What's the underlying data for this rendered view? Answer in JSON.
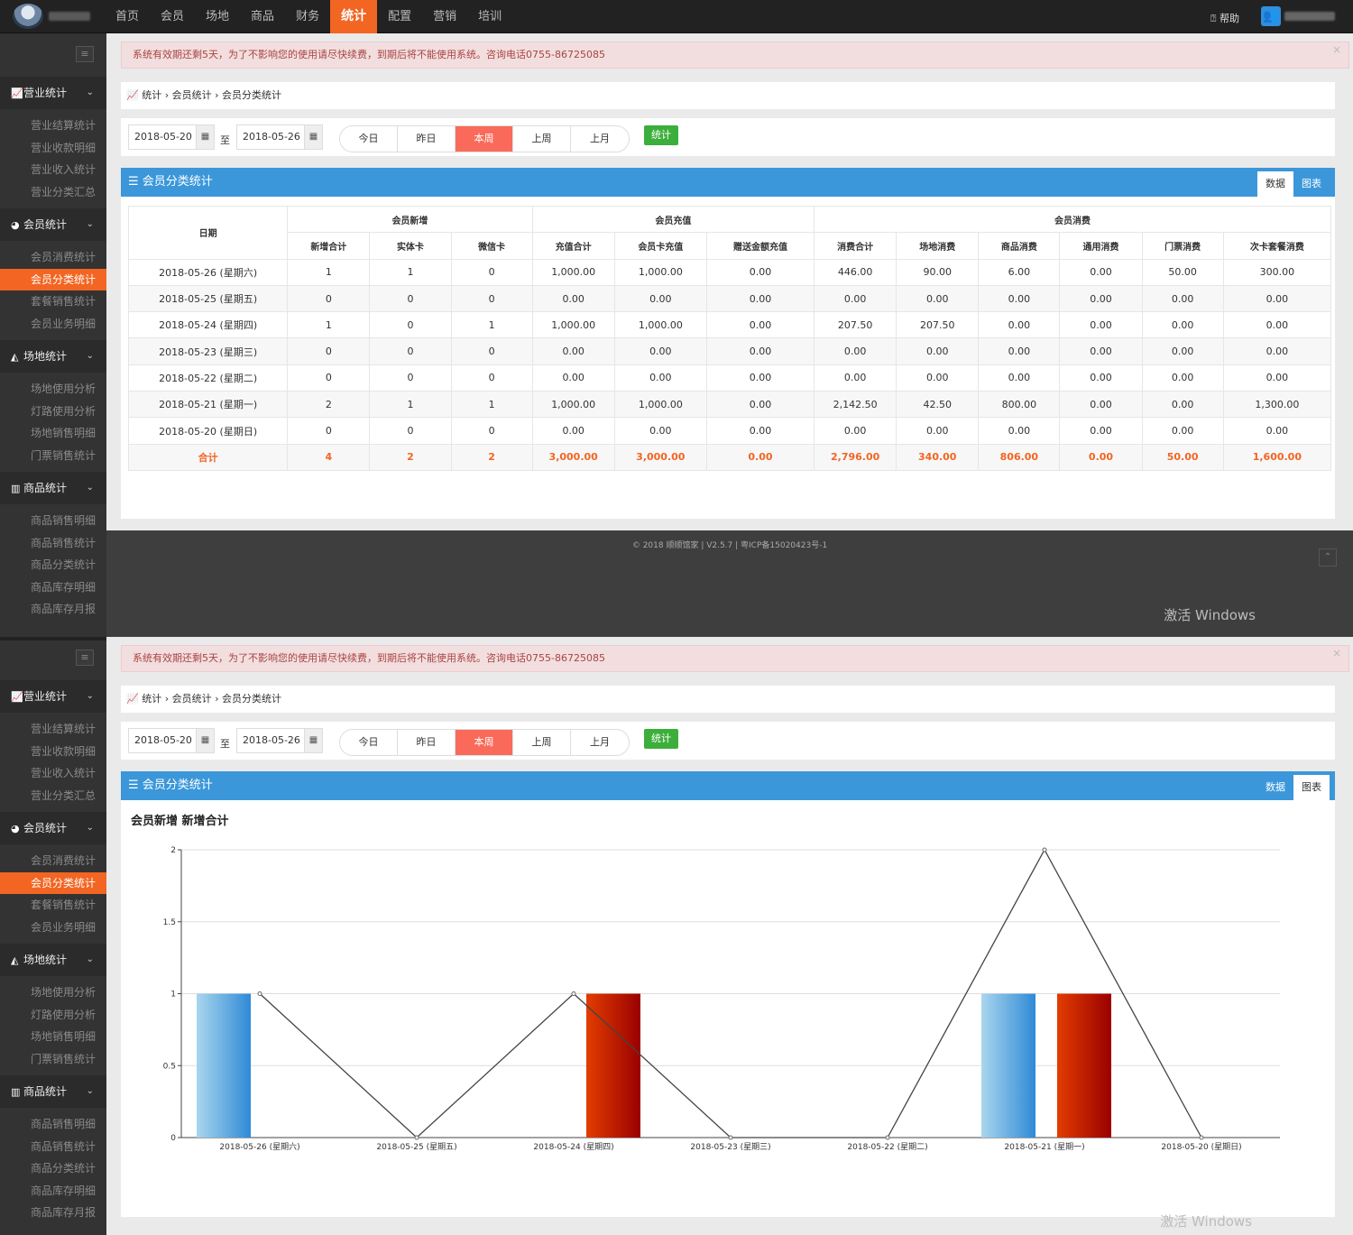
{
  "topnav": {
    "items": [
      "首页",
      "会员",
      "场地",
      "商品",
      "财务",
      "统计",
      "配置",
      "营销",
      "培训"
    ],
    "active": 5,
    "help": "帮助"
  },
  "alert": "系统有效期还剩5天，为了不影响您的使用请尽快续费，到期后将不能使用系统。咨询电话0755-86725085",
  "alert_close": "×",
  "breadcrumb": "统计 › 会员统计 › 会员分类统计",
  "filter": {
    "start": "2018-05-20",
    "end": "2018-05-26",
    "to": "至",
    "ranges": [
      "今日",
      "昨日",
      "本周",
      "上周",
      "上月"
    ],
    "active_range": 2,
    "submit": "统计"
  },
  "panel": {
    "title": "☰ 会员分类统计",
    "tab_data": "数据",
    "tab_chart": "图表"
  },
  "sidebar": [
    {
      "title": "营业统计",
      "icon": "line-chart-icon",
      "items": [
        "营业结算统计",
        "营业收款明细",
        "营业收入统计",
        "营业分类汇总"
      ]
    },
    {
      "title": "会员统计",
      "icon": "pie-chart-icon",
      "items": [
        "会员消费统计",
        "会员分类统计",
        "套餐销售统计",
        "会员业务明细"
      ]
    },
    {
      "title": "场地统计",
      "icon": "area-chart-icon",
      "items": [
        "场地使用分析",
        "灯路使用分析",
        "场地销售明细",
        "门票销售统计"
      ]
    },
    {
      "title": "商品统计",
      "icon": "bar-chart-icon",
      "items": [
        "商品销售明细",
        "商品销售统计",
        "商品分类统计",
        "商品库存明细",
        "商品库存月报"
      ]
    }
  ],
  "sidebar_active": "会员分类统计",
  "table": {
    "group_headers": [
      {
        "label": "会员新增",
        "span": 3
      },
      {
        "label": "会员充值",
        "span": 3
      },
      {
        "label": "会员消费",
        "span": 6
      }
    ],
    "date_header": "日期",
    "columns": [
      "新增合计",
      "实体卡",
      "微信卡",
      "充值合计",
      "会员卡充值",
      "赠送金额充值",
      "消费合计",
      "场地消费",
      "商品消费",
      "通用消费",
      "门票消费",
      "次卡套餐消费"
    ],
    "rows": [
      [
        "2018-05-26 (星期六)",
        "1",
        "1",
        "0",
        "1,000.00",
        "1,000.00",
        "0.00",
        "446.00",
        "90.00",
        "6.00",
        "0.00",
        "50.00",
        "300.00"
      ],
      [
        "2018-05-25 (星期五)",
        "0",
        "0",
        "0",
        "0.00",
        "0.00",
        "0.00",
        "0.00",
        "0.00",
        "0.00",
        "0.00",
        "0.00",
        "0.00"
      ],
      [
        "2018-05-24 (星期四)",
        "1",
        "0",
        "1",
        "1,000.00",
        "1,000.00",
        "0.00",
        "207.50",
        "207.50",
        "0.00",
        "0.00",
        "0.00",
        "0.00"
      ],
      [
        "2018-05-23 (星期三)",
        "0",
        "0",
        "0",
        "0.00",
        "0.00",
        "0.00",
        "0.00",
        "0.00",
        "0.00",
        "0.00",
        "0.00",
        "0.00"
      ],
      [
        "2018-05-22 (星期二)",
        "0",
        "0",
        "0",
        "0.00",
        "0.00",
        "0.00",
        "0.00",
        "0.00",
        "0.00",
        "0.00",
        "0.00",
        "0.00"
      ],
      [
        "2018-05-21 (星期一)",
        "2",
        "1",
        "1",
        "1,000.00",
        "1,000.00",
        "0.00",
        "2,142.50",
        "42.50",
        "800.00",
        "0.00",
        "0.00",
        "1,300.00"
      ],
      [
        "2018-05-20 (星期日)",
        "0",
        "0",
        "0",
        "0.00",
        "0.00",
        "0.00",
        "0.00",
        "0.00",
        "0.00",
        "0.00",
        "0.00",
        "0.00"
      ]
    ],
    "total": [
      "合计",
      "4",
      "2",
      "2",
      "3,000.00",
      "3,000.00",
      "0.00",
      "2,796.00",
      "340.00",
      "806.00",
      "0.00",
      "50.00",
      "1,600.00"
    ]
  },
  "footer": "© 2018 顺顺馆家 | V2.5.7 | 粤ICP备15020423号-1",
  "watermark": "激活 Windows",
  "chart_data": {
    "type": "bar",
    "title": "会员新增 新增合计",
    "categories": [
      "2018-05-26 (星期六)",
      "2018-05-25 (星期五)",
      "2018-05-24 (星期四)",
      "2018-05-23 (星期三)",
      "2018-05-22 (星期二)",
      "2018-05-21 (星期一)",
      "2018-05-20 (星期日)"
    ],
    "series": [
      {
        "values": [
          1,
          0,
          0,
          0,
          0,
          1,
          0
        ],
        "color": "#3b97da"
      },
      {
        "values": [
          0,
          0,
          1,
          0,
          0,
          1,
          0
        ],
        "color": "#c81a00"
      },
      {
        "type": "line",
        "values": [
          1,
          0,
          1,
          0,
          0,
          2,
          0
        ],
        "color": "#444444"
      }
    ],
    "ylim": [
      0,
      2
    ],
    "yticks": [
      "0",
      "0.5",
      "1",
      "1.5",
      "2"
    ],
    "grid": true
  }
}
